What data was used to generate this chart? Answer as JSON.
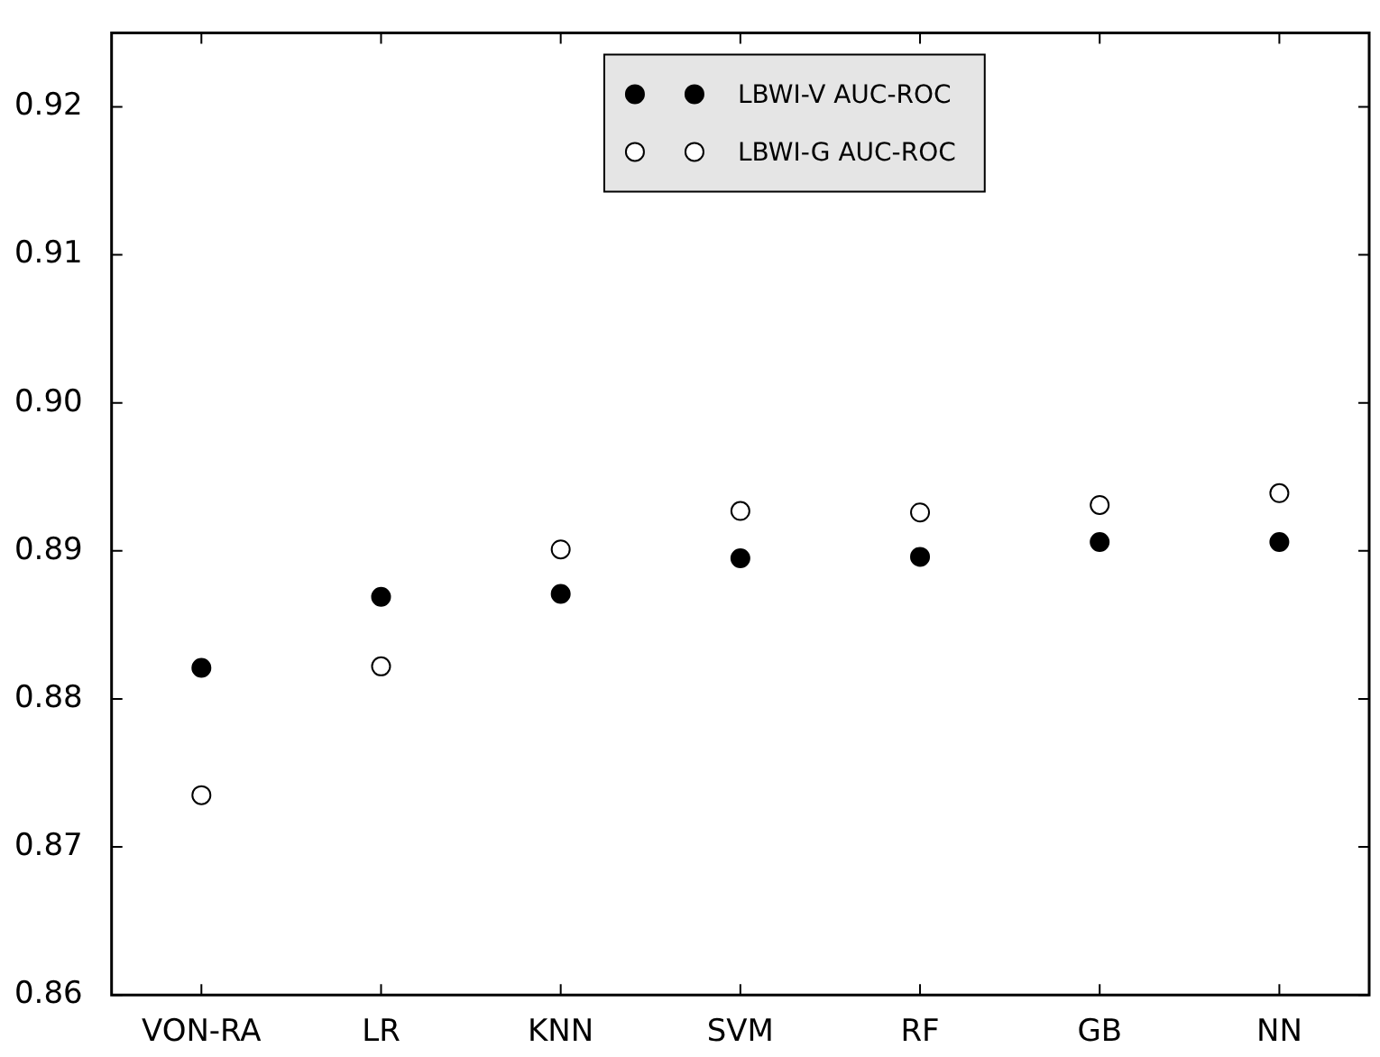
{
  "chart_data": {
    "type": "scatter",
    "categories": [
      "VON-RA",
      "LR",
      "KNN",
      "SVM",
      "RF",
      "GB",
      "NN"
    ],
    "series": [
      {
        "name": "LBWI-V AUC-ROC",
        "color": "#000000",
        "values": [
          0.8821,
          0.8869,
          0.8871,
          0.8895,
          0.8896,
          0.8906,
          0.8906
        ]
      },
      {
        "name": "LBWI-G AUC-ROC",
        "color": "#ffffff",
        "values": [
          0.8735,
          0.8822,
          0.8901,
          0.8927,
          0.8926,
          0.8931,
          0.8939
        ]
      }
    ],
    "ylim": [
      0.86,
      0.925
    ],
    "yticks": [
      0.86,
      0.87,
      0.88,
      0.89,
      {
        "value": 0.9,
        "label": "0.90"
      },
      0.91,
      0.92
    ],
    "grid": false,
    "legend": "top",
    "marker": "circle"
  }
}
